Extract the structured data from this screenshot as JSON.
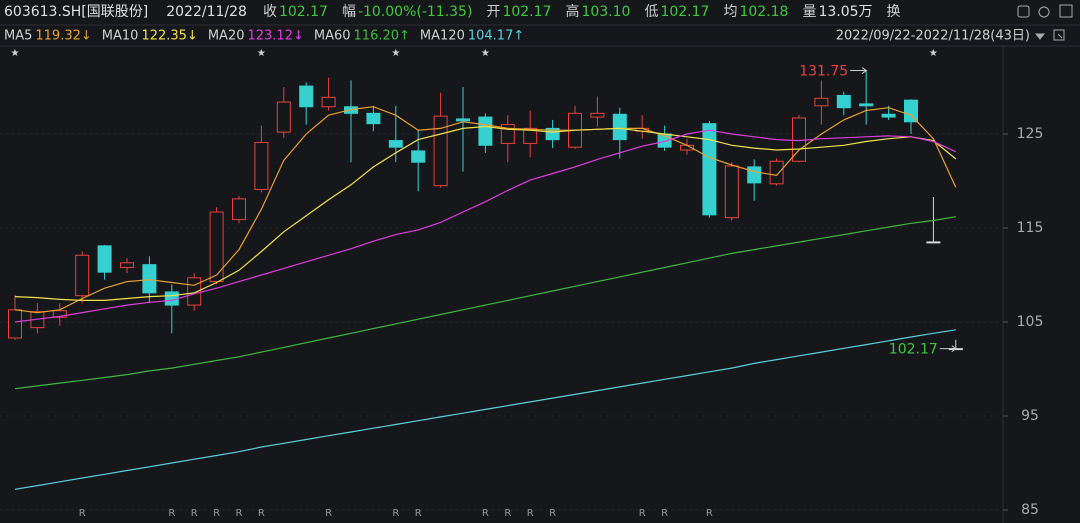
{
  "header": {
    "code": "603613.SH[国联股份]",
    "date": "2022/11/28",
    "fields": [
      {
        "label": "收",
        "value": "102.17",
        "color": "#3ec93e"
      },
      {
        "label": "幅",
        "value": "-10.00%(-11.35)",
        "color": "#3ec93e"
      },
      {
        "label": "开",
        "value": "102.17",
        "color": "#3ec93e"
      },
      {
        "label": "高",
        "value": "103.10",
        "color": "#3ec93e"
      },
      {
        "label": "低",
        "value": "102.17",
        "color": "#3ec93e"
      },
      {
        "label": "均",
        "value": "102.18",
        "color": "#3ec93e"
      },
      {
        "label": "量",
        "value": "13.05万",
        "color": "#e0e0e0"
      }
    ],
    "more": "换",
    "range": "2022/09/22-2022/11/28(43日)"
  },
  "chart_data": {
    "type": "candlestick",
    "up_color": "#e8433c",
    "down_color": "#35d0d0",
    "flat_color": "#d8d8d8",
    "open": [
      103.3,
      104.4,
      105.5,
      107.8,
      113.1,
      110.8,
      111.1,
      108.2,
      106.8,
      109.3,
      115.9,
      119.1,
      125.2,
      130.1,
      127.9,
      127.9,
      127.2,
      124.3,
      123.2,
      119.5,
      126.6,
      126.8,
      124.0,
      124.0,
      125.6,
      123.6,
      126.8,
      127.1,
      125.3,
      125.0,
      123.3,
      126.1,
      116.1,
      121.5,
      119.7,
      122.1,
      128.0,
      129.1,
      128.2,
      127.1,
      128.6,
      113.52,
      102.17
    ],
    "high": [
      107.9,
      107.0,
      107.0,
      112.5,
      113.2,
      111.8,
      112.0,
      109.0,
      110.2,
      117.2,
      118.4,
      125.9,
      130.0,
      130.5,
      131.0,
      130.7,
      128.0,
      128.0,
      125.4,
      129.4,
      130.0,
      127.2,
      127.0,
      127.5,
      126.5,
      128.0,
      129.0,
      127.8,
      127.0,
      125.9,
      124.5,
      126.4,
      122.0,
      122.3,
      122.4,
      127.0,
      130.7,
      129.5,
      131.75,
      128.0,
      128.7,
      118.3,
      103.1
    ],
    "low": [
      103.1,
      103.8,
      104.6,
      107.0,
      109.5,
      110.2,
      107.0,
      103.8,
      106.2,
      109.0,
      115.5,
      118.8,
      124.6,
      126.0,
      127.5,
      122.0,
      125.3,
      122.0,
      118.9,
      119.3,
      121.0,
      123.0,
      122.0,
      122.5,
      123.5,
      123.4,
      125.8,
      122.4,
      124.5,
      123.2,
      122.8,
      116.1,
      115.8,
      117.9,
      119.5,
      122.0,
      126.0,
      127.0,
      126.0,
      126.5,
      125.0,
      113.52,
      102.17
    ],
    "close": [
      106.3,
      106.1,
      106.2,
      112.1,
      110.3,
      111.3,
      108.1,
      106.8,
      109.7,
      116.7,
      118.1,
      124.1,
      128.4,
      127.9,
      128.9,
      127.2,
      126.1,
      123.6,
      122.0,
      126.9,
      126.4,
      123.8,
      126.0,
      125.6,
      124.4,
      127.2,
      127.2,
      124.4,
      125.6,
      123.6,
      123.8,
      116.4,
      121.6,
      119.8,
      122.1,
      126.7,
      128.8,
      127.8,
      128.0,
      126.8,
      126.3,
      113.52,
      102.17
    ],
    "series": [
      {
        "name": "MA5",
        "color": "#e8a030",
        "legend_value": "119.32↓",
        "values": [
          106.3,
          106.0,
          106.3,
          107.5,
          108.6,
          109.3,
          109.5,
          109.2,
          108.9,
          110.0,
          112.7,
          117.0,
          122.2,
          125.0,
          127.0,
          127.6,
          127.9,
          127.0,
          125.4,
          125.6,
          126.3,
          126.0,
          125.6,
          125.5,
          125.4,
          125.4,
          125.5,
          125.6,
          125.6,
          124.8,
          123.8,
          122.5,
          121.7,
          121.0,
          120.6,
          123.3,
          125.0,
          126.5,
          127.5,
          127.8,
          127.0,
          124.5,
          119.32
        ]
      },
      {
        "name": "MA10",
        "color": "#f2e24a",
        "legend_value": "122.35↓",
        "values": [
          107.7,
          107.6,
          107.4,
          107.3,
          107.3,
          107.5,
          107.7,
          107.8,
          108.1,
          109.2,
          110.5,
          112.5,
          114.6,
          116.3,
          118.0,
          119.6,
          121.5,
          123.0,
          124.4,
          125.0,
          125.6,
          125.8,
          125.5,
          125.4,
          125.2,
          125.4,
          125.5,
          125.6,
          125.3,
          125.0,
          124.7,
          124.4,
          123.8,
          123.5,
          123.3,
          123.4,
          123.6,
          123.8,
          124.2,
          124.5,
          124.7,
          124.3,
          122.35
        ]
      },
      {
        "name": "MA20",
        "color": "#e03ce0",
        "legend_value": "123.12↓",
        "values": [
          105.0,
          105.3,
          105.6,
          106.0,
          106.4,
          106.8,
          107.1,
          107.3,
          108.0,
          108.6,
          109.3,
          110.0,
          110.7,
          111.4,
          112.1,
          112.8,
          113.6,
          114.3,
          114.8,
          115.6,
          116.7,
          117.8,
          119.0,
          120.1,
          120.8,
          121.5,
          122.3,
          123.0,
          123.7,
          124.2,
          125.0,
          125.4,
          125.0,
          124.7,
          124.4,
          124.3,
          124.5,
          124.6,
          124.7,
          124.8,
          124.7,
          124.2,
          123.12
        ]
      },
      {
        "name": "MA60",
        "color": "#3fb93f",
        "legend_value": "116.20↑",
        "values": [
          97.9,
          98.2,
          98.5,
          98.8,
          99.1,
          99.4,
          99.8,
          100.1,
          100.5,
          100.9,
          101.3,
          101.8,
          102.3,
          102.8,
          103.3,
          103.8,
          104.3,
          104.8,
          105.3,
          105.8,
          106.3,
          106.8,
          107.3,
          107.8,
          108.3,
          108.8,
          109.3,
          109.8,
          110.3,
          110.8,
          111.3,
          111.8,
          112.3,
          112.7,
          113.1,
          113.5,
          113.9,
          114.3,
          114.7,
          115.1,
          115.5,
          115.8,
          116.2
        ]
      },
      {
        "name": "MA120",
        "color": "#5ad0e0",
        "legend_value": "104.17↑",
        "values": [
          87.2,
          87.6,
          88.0,
          88.4,
          88.8,
          89.2,
          89.6,
          90.0,
          90.4,
          90.8,
          91.2,
          91.7,
          92.1,
          92.5,
          92.9,
          93.3,
          93.7,
          94.1,
          94.5,
          94.9,
          95.3,
          95.7,
          96.1,
          96.5,
          96.9,
          97.3,
          97.7,
          98.1,
          98.5,
          98.9,
          99.3,
          99.7,
          100.1,
          100.6,
          101.0,
          101.4,
          101.8,
          102.2,
          102.6,
          103.0,
          103.4,
          103.8,
          104.17
        ]
      }
    ],
    "high_annotation": 38,
    "close_annotation": 42,
    "ylim": [
      84.5,
      133
    ],
    "yticks": [
      85,
      95,
      105,
      115,
      125
    ],
    "grid": true,
    "marks_top": {
      "symbol": "★",
      "at": [
        0,
        11,
        17,
        21,
        41
      ]
    },
    "marks_bottom": {
      "symbol": "R",
      "at": [
        3,
        7,
        8,
        9,
        10,
        11,
        14,
        17,
        18,
        21,
        22,
        23,
        24,
        28,
        29,
        31
      ]
    }
  }
}
